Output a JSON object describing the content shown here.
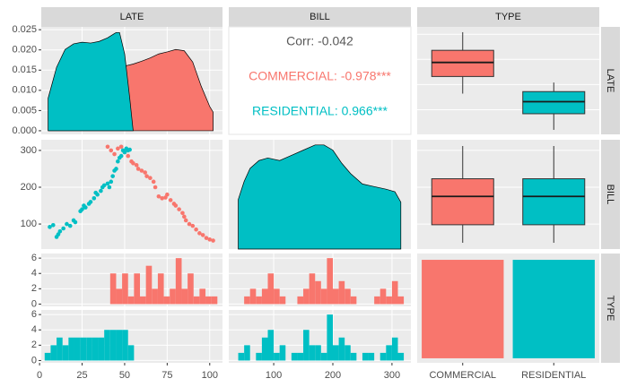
{
  "strips": [
    "LATE",
    "BILL",
    "TYPE"
  ],
  "chart_data": [
    {
      "type": "density",
      "xlim": [
        1,
        107.5
      ],
      "ylim": [
        -0.0009,
        0.0257
      ],
      "xticks": [
        0,
        25,
        50,
        75,
        100
      ],
      "yticks": [
        {
          "value": 0,
          "label": "0.000"
        },
        {
          "value": 0.005,
          "label": "0.005"
        },
        {
          "value": 0.01,
          "label": "0.010"
        },
        {
          "value": 0.015,
          "label": "0.015"
        },
        {
          "value": 0.02,
          "label": "0.020"
        },
        {
          "value": 0.025,
          "label": "0.025"
        }
      ],
      "series": [
        {
          "name": "COMMERCIAL",
          "color": "#F8766D",
          "x": [
            5,
            20,
            35,
            40,
            45,
            50,
            55,
            60,
            65,
            70,
            75,
            80,
            85,
            90,
            95,
            100,
            102
          ],
          "values": [
            0,
            0.0001,
            0.002,
            0.006,
            0.012,
            0.016,
            0.0165,
            0.0172,
            0.018,
            0.019,
            0.0195,
            0.0201,
            0.0198,
            0.017,
            0.011,
            0.006,
            0.0046
          ]
        },
        {
          "name": "RESIDENTIAL",
          "color": "#00BFC4",
          "x": [
            5,
            10,
            15,
            20,
            25,
            30,
            35,
            40,
            45,
            47,
            50,
            53,
            55
          ],
          "values": [
            0.008,
            0.0157,
            0.0201,
            0.0215,
            0.0219,
            0.0217,
            0.0221,
            0.023,
            0.0243,
            0.0243,
            0.019,
            0.008,
            0
          ]
        }
      ]
    },
    {
      "type": "correlation",
      "texts": [
        "Corr: -0.042",
        "COMMERCIAL: -0.978***",
        "RESIDENTIAL: 0.966***"
      ],
      "colors": [
        "#595959",
        "#F8766D",
        "#00BFC4"
      ]
    },
    {
      "type": "boxplot",
      "ylim": [
        0.5,
        107.3
      ],
      "yticks": [
        0,
        25,
        50,
        75,
        100
      ],
      "boxes": [
        {
          "color": "#F8766D",
          "min": 41,
          "q1": 58,
          "median": 72,
          "q3": 84,
          "max": 102
        },
        {
          "color": "#00BFC4",
          "min": 5,
          "q1": 21,
          "median": 33,
          "q3": 43,
          "max": 52
        }
      ]
    },
    {
      "type": "scatter",
      "xlim": [
        1,
        107.5
      ],
      "ylim": [
        32,
        329
      ],
      "xticks": [
        0,
        25,
        50,
        75,
        100
      ],
      "yticks": [
        100,
        200,
        300
      ],
      "series": [
        {
          "name": "COMMERCIAL",
          "color": "#F8766D",
          "x": [
            40,
            42,
            44,
            46,
            48,
            50,
            52,
            54,
            55,
            57,
            58,
            60,
            62,
            63,
            65,
            67,
            68,
            70,
            72,
            74,
            75,
            77,
            79,
            80,
            82,
            84,
            85,
            86,
            88,
            90,
            92,
            94,
            96,
            98,
            100,
            102
          ],
          "values": [
            310,
            300,
            290,
            305,
            310,
            295,
            285,
            270,
            265,
            260,
            250,
            245,
            240,
            230,
            225,
            215,
            200,
            175,
            170,
            172,
            180,
            165,
            155,
            150,
            140,
            130,
            120,
            110,
            100,
            95,
            85,
            75,
            70,
            62,
            58,
            55
          ]
        },
        {
          "name": "RESIDENTIAL",
          "color": "#00BFC4",
          "x": [
            6,
            8,
            10,
            11,
            12,
            14,
            16,
            18,
            20,
            21,
            24,
            25,
            26,
            27,
            29,
            30,
            32,
            33,
            34,
            36,
            37,
            38,
            40,
            41,
            42,
            43,
            44,
            45,
            46,
            47,
            48,
            49,
            50,
            51,
            52,
            53
          ],
          "values": [
            92,
            97,
            65,
            72,
            80,
            88,
            100,
            95,
            110,
            105,
            135,
            140,
            150,
            145,
            155,
            160,
            170,
            185,
            180,
            190,
            200,
            205,
            210,
            200,
            215,
            230,
            245,
            250,
            270,
            280,
            285,
            300,
            295,
            305,
            300,
            302
          ]
        }
      ]
    },
    {
      "type": "density",
      "xlim": [
        24,
        332
      ],
      "ylim": [
        0,
        0.0042
      ],
      "xticks": [
        100,
        200,
        300
      ],
      "color": "#00BFC4",
      "x": [
        40,
        50,
        60,
        75,
        90,
        110,
        130,
        150,
        170,
        185,
        200,
        215,
        230,
        250,
        270,
        290,
        305,
        315
      ],
      "values": [
        0.0019,
        0.0026,
        0.0031,
        0.0034,
        0.0035,
        0.0034,
        0.0036,
        0.0038,
        0.004,
        0.004,
        0.0038,
        0.0033,
        0.0029,
        0.0025,
        0.0024,
        0.0023,
        0.0022,
        0.0018
      ]
    },
    {
      "type": "boxplot",
      "ylim": [
        32,
        329
      ],
      "yticks": [
        100,
        200,
        300
      ],
      "boxes": [
        {
          "color": "#F8766D",
          "min": 49,
          "q1": 98,
          "median": 175,
          "q3": 223,
          "max": 312
        },
        {
          "color": "#00BFC4",
          "min": 49,
          "q1": 98,
          "median": 175,
          "q3": 223,
          "max": 312
        }
      ]
    },
    {
      "type": "histogram",
      "xlim": [
        1,
        107.5
      ],
      "ylim": [
        -0.3,
        6.6
      ],
      "xticks": [
        0,
        25,
        50,
        75,
        100
      ],
      "yticks": [
        0,
        2,
        4,
        6
      ],
      "bins": [
        3,
        6.5,
        10,
        13.5,
        17,
        20.5,
        24,
        27.5,
        31,
        34.5,
        38,
        41.5,
        45,
        48.5,
        52,
        55.5,
        59,
        62.5,
        66,
        69.5,
        73,
        76.5,
        80,
        83.5,
        87,
        90.5,
        94,
        97.5,
        101,
        104.5
      ],
      "series": [
        {
          "name": "COMMERCIAL",
          "color": "#F8766D",
          "values": [
            0,
            0,
            0,
            0,
            0,
            0,
            0,
            0,
            0,
            0,
            0,
            4,
            2,
            4,
            1,
            4,
            1,
            5,
            2,
            4,
            1,
            2,
            6,
            2,
            4,
            1,
            2,
            1,
            1
          ]
        },
        {
          "name": "RESIDENTIAL",
          "color": "#00BFC4",
          "values": [
            1,
            2,
            3,
            2,
            3,
            3,
            3,
            3,
            3,
            3,
            4,
            4,
            4,
            4,
            2,
            0,
            0,
            0,
            0,
            0,
            0,
            0,
            0,
            0,
            0,
            0,
            0,
            0,
            0
          ]
        }
      ]
    },
    {
      "type": "histogram",
      "xlim": [
        24,
        332
      ],
      "ylim": [
        -0.3,
        6.6
      ],
      "xticks": [
        100,
        200,
        300
      ],
      "yticks": [
        0,
        2,
        4,
        6
      ],
      "bins": [
        40,
        50,
        60,
        70,
        80,
        90,
        100,
        110,
        120,
        130,
        140,
        150,
        160,
        170,
        180,
        190,
        200,
        210,
        220,
        230,
        240,
        250,
        260,
        270,
        280,
        290,
        300,
        310,
        320
      ],
      "series": [
        {
          "name": "COMMERCIAL",
          "color": "#F8766D",
          "values": [
            0,
            1,
            2,
            1,
            2,
            4,
            2,
            1,
            0,
            0,
            1,
            2,
            4,
            3,
            2,
            6,
            2,
            3,
            2,
            1,
            0,
            0,
            0,
            1,
            2,
            1,
            3,
            1
          ]
        },
        {
          "name": "RESIDENTIAL",
          "color": "#00BFC4",
          "values": [
            1,
            2,
            0,
            1,
            3,
            4,
            1,
            2,
            0,
            1,
            1,
            4,
            2,
            2,
            1,
            6,
            2,
            3,
            2,
            1,
            0,
            1,
            1,
            0,
            1,
            2,
            3,
            1
          ]
        }
      ]
    },
    {
      "type": "bar",
      "ylim": [
        -2.3,
        53.2
      ],
      "categories": [
        "COMMERCIAL",
        "RESIDENTIAL"
      ],
      "values": [
        50,
        50
      ],
      "colors": [
        "#F8766D",
        "#00BFC4"
      ]
    }
  ]
}
